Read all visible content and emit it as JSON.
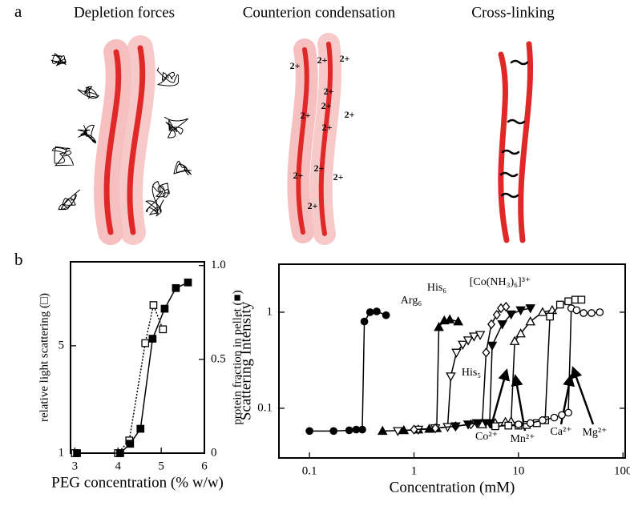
{
  "panel_labels": [
    "a",
    "b"
  ],
  "diagram": {
    "titles": [
      "Depletion forces",
      "Counterion condensation",
      "Cross-linking"
    ],
    "ion_labels": [
      "2+",
      "2+",
      "2+",
      "2+",
      "2+",
      "2+",
      "2+",
      "2+",
      "2+",
      "2+",
      "2+",
      "2+"
    ]
  },
  "chart_data": [
    {
      "type": "line",
      "xlabel": "PEG concentration (% w/w)",
      "ylabel": "relative light scattering (□)",
      "y2label": "protein fraction in pellet (■)",
      "xlim": [
        2.9,
        6
      ],
      "xticks": [
        3,
        4,
        5,
        6
      ],
      "ylim": [
        1,
        17.6
      ],
      "yticks": [
        1,
        5
      ],
      "ylog": true,
      "y2lim": [
        0,
        1.02
      ],
      "y2ticks": [
        0,
        0.5,
        {
          "value": 1,
          "label": "1.0"
        }
      ],
      "series": [
        {
          "marker": "open-square",
          "dash": "dotted",
          "color": "#000000",
          "x": [
            3.0,
            4.0,
            4.26,
            4.63,
            4.82,
            5.04
          ],
          "values": [
            1,
            1,
            1.21,
            5.2,
            9.2,
            6.4
          ]
        },
        {
          "marker": "filled-square",
          "dash": "solid",
          "axis": "y2",
          "color": "#000000",
          "x": [
            3.05,
            4.05,
            4.28,
            4.52,
            4.8,
            5.08,
            5.34,
            5.62
          ],
          "values": [
            0,
            0,
            0.05,
            0.13,
            0.61,
            0.77,
            0.88,
            0.91
          ]
        }
      ]
    },
    {
      "type": "line",
      "xlabel": "Concentration (mM)",
      "ylabel": "Scattering Intensity",
      "xlim": [
        0.051,
        105
      ],
      "xticks": [
        0.1,
        1,
        10,
        100
      ],
      "xlog": true,
      "ylim": [
        0.0304,
        3.16
      ],
      "yticks": [
        0.1,
        1
      ],
      "ylog": true,
      "series": [
        {
          "name": "Arg₆",
          "marker": "filled-circle",
          "color": "#000000",
          "x": [
            0.1,
            0.17,
            0.24,
            0.28,
            0.32,
            0.335,
            0.38,
            0.44,
            0.54
          ],
          "values": [
            0.058,
            0.058,
            0.059,
            0.06,
            0.06,
            0.8,
            1.0,
            1.02,
            0.93
          ]
        },
        {
          "name": "His₆",
          "marker": "filled-triangle",
          "color": "#000000",
          "x": [
            0.5,
            0.8,
            1.1,
            1.4,
            1.65,
            1.73,
            1.95,
            2.2,
            2.65
          ],
          "values": [
            0.058,
            0.059,
            0.06,
            0.061,
            0.062,
            0.7,
            0.82,
            0.84,
            0.8
          ]
        },
        {
          "name": "His₅",
          "marker": "open-down-triangle",
          "color": "#000000",
          "x": [
            0.7,
            1.1,
            1.6,
            2.1,
            2.25,
            2.55,
            2.93,
            3.3,
            3.75,
            4.3
          ],
          "values": [
            0.058,
            0.06,
            0.062,
            0.064,
            0.215,
            0.38,
            0.46,
            0.51,
            0.56,
            0.58
          ]
        },
        {
          "name": "[Co(NH₃)₆]³⁺",
          "marker": "open-diamond",
          "color": "#000000",
          "x": [
            1.0,
            1.6,
            2.5,
            3.5,
            4.5,
            4.9,
            5.5,
            6.2,
            6.8,
            7.6
          ],
          "values": [
            0.06,
            0.062,
            0.065,
            0.068,
            0.07,
            0.38,
            0.75,
            0.94,
            1.1,
            1.14
          ]
        },
        {
          "name": "Co²⁺",
          "marker": "filled-down-triangle",
          "color": "#000000",
          "x": [
            2.5,
            3.3,
            4.0,
            4.8,
            5.3,
            5.6,
            7.0,
            8.5,
            10.5,
            13
          ],
          "values": [
            0.065,
            0.068,
            0.07,
            0.07,
            0.07,
            0.45,
            0.75,
            0.95,
            1.05,
            1.1
          ]
        },
        {
          "name": "Mn²⁺",
          "marker": "open-triangle",
          "color": "#000000",
          "x": [
            4.5,
            6,
            7.5,
            8.5,
            9.2,
            10.5,
            13,
            17,
            21
          ],
          "values": [
            0.068,
            0.07,
            0.072,
            0.073,
            0.5,
            0.6,
            0.8,
            1.0,
            1.05
          ]
        },
        {
          "name": "Ca²⁺",
          "marker": "open-square",
          "color": "#000000",
          "x": [
            6,
            8,
            10,
            12,
            15,
            18,
            20,
            25,
            30,
            35,
            40
          ],
          "values": [
            0.065,
            0.066,
            0.066,
            0.067,
            0.07,
            0.075,
            0.9,
            1.2,
            1.3,
            1.35,
            1.35
          ]
        },
        {
          "name": "Mg²⁺",
          "marker": "open-circle",
          "color": "#000000",
          "x": [
            10,
            13,
            17,
            22,
            26,
            30,
            32,
            36,
            42,
            50,
            60
          ],
          "values": [
            0.068,
            0.07,
            0.075,
            0.08,
            0.085,
            0.09,
            1.1,
            1.05,
            0.98,
            0.98,
            1.0
          ]
        }
      ]
    }
  ]
}
